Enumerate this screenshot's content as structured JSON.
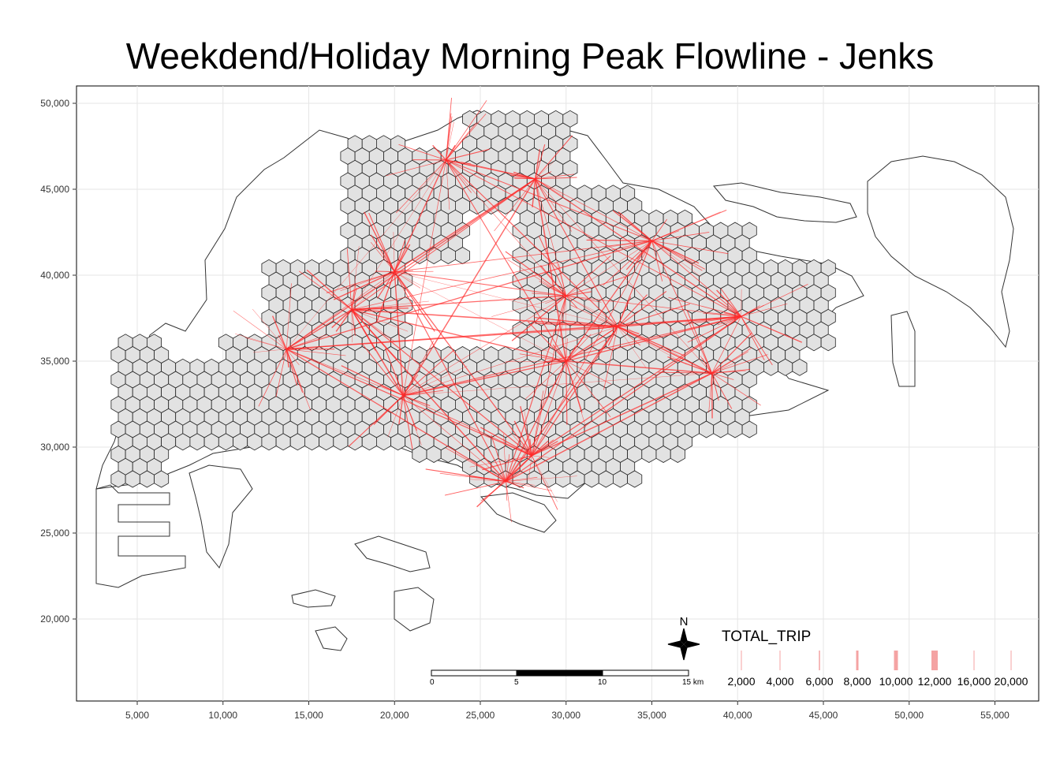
{
  "title": "Weekdend/Holiday Morning Peak Flowline - Jenks",
  "x_axis": {
    "ticks": [
      "5,000",
      "10,000",
      "15,000",
      "20,000",
      "25,000",
      "30,000",
      "35,000",
      "40,000",
      "45,000",
      "50,000",
      "55,000"
    ]
  },
  "y_axis": {
    "ticks": [
      "50,000",
      "45,000",
      "40,000",
      "35,000",
      "30,000",
      "25,000",
      "20,000"
    ]
  },
  "legend": {
    "title": "TOTAL_TRIP",
    "items": [
      "2,000",
      "4,000",
      "6,000",
      "8,000",
      "10,000",
      "12,000",
      "16,000",
      "20,000"
    ],
    "color": "#f4a3a3"
  },
  "north_arrow": {
    "label": "N"
  },
  "scale_bar": {
    "labels": [
      "0",
      "5",
      "10",
      "15 km"
    ]
  },
  "colors": {
    "flow": "#ff2a2a",
    "hex_fill": "#e2e2e2",
    "hex_stroke": "#222222",
    "coast": "#333333"
  },
  "hubs": [
    {
      "x": 23.0,
      "y": 46.7
    },
    {
      "x": 28.2,
      "y": 45.6
    },
    {
      "x": 35.0,
      "y": 42.0
    },
    {
      "x": 30.0,
      "y": 38.8
    },
    {
      "x": 40.2,
      "y": 37.6
    },
    {
      "x": 38.5,
      "y": 34.3
    },
    {
      "x": 13.7,
      "y": 35.7
    },
    {
      "x": 20.0,
      "y": 40.2
    },
    {
      "x": 30.0,
      "y": 35.0
    },
    {
      "x": 28.0,
      "y": 29.5
    },
    {
      "x": 20.5,
      "y": 33.0
    },
    {
      "x": 26.5,
      "y": 28.0
    },
    {
      "x": 33.0,
      "y": 37.0
    },
    {
      "x": 17.5,
      "y": 38.0
    }
  ]
}
